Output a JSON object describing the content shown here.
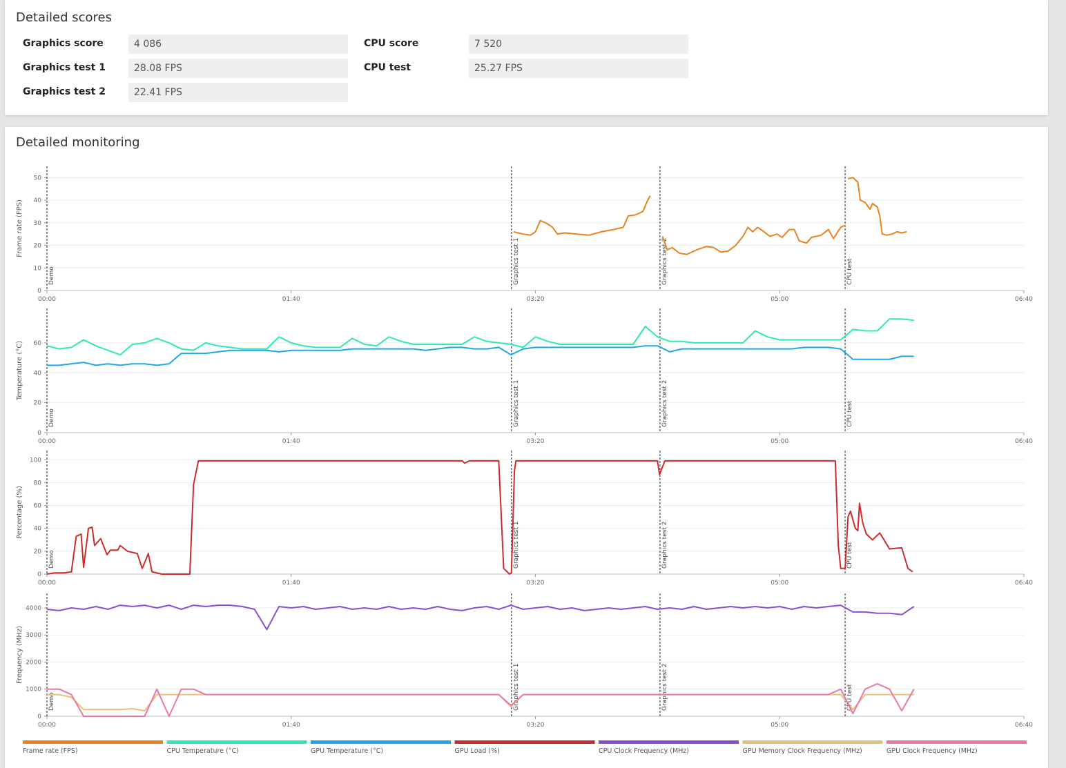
{
  "scores": {
    "title": "Detailed scores",
    "left": [
      {
        "label": "Graphics score",
        "value": "4 086"
      },
      {
        "label": "Graphics test 1",
        "value": "28.08 FPS"
      },
      {
        "label": "Graphics test 2",
        "value": "22.41 FPS"
      }
    ],
    "right": [
      {
        "label": "CPU score",
        "value": "7 520"
      },
      {
        "label": "CPU test",
        "value": "25.27 FPS"
      }
    ]
  },
  "monitoring": {
    "title": "Detailed monitoring"
  },
  "chart_data": [
    {
      "type": "line",
      "y_label": "Frame rate (FPS)",
      "x": [
        191,
        195,
        198,
        200,
        202,
        205,
        207,
        209,
        212,
        217,
        222,
        227,
        232,
        236,
        238,
        241,
        244,
        246,
        247,
        249,
        252,
        254,
        256,
        259,
        262,
        266,
        270,
        273,
        276,
        279,
        282,
        285,
        287,
        289,
        291,
        293,
        296,
        299,
        301,
        304,
        306,
        308,
        311,
        313,
        317,
        320,
        322,
        325,
        327,
        327.5,
        328,
        330,
        332,
        333,
        335,
        337,
        338,
        340,
        341,
        342,
        344,
        346,
        348,
        350,
        352
      ],
      "series": [
        {
          "name": "Frame rate (FPS)",
          "color": "#e8821f",
          "values": [
            26,
            25,
            24.5,
            26,
            31,
            29.5,
            28,
            25,
            25.5,
            25,
            24.5,
            26,
            27,
            28,
            33,
            33.5,
            35,
            40,
            42,
            null,
            24,
            18,
            19,
            16.5,
            16,
            18,
            19.5,
            19,
            17,
            17.5,
            20,
            24,
            28,
            26,
            28,
            26.5,
            24,
            25,
            23.5,
            27,
            27,
            22,
            21,
            23.5,
            24.5,
            27,
            23,
            28,
            29,
            null,
            49.5,
            50,
            48,
            40,
            39,
            36,
            38.5,
            37,
            33,
            25,
            24.5,
            25,
            26,
            25.5,
            26
          ]
        }
      ],
      "xlim": [
        0,
        400
      ],
      "xticks": [
        {
          "value": 0,
          "label": "00:00"
        },
        {
          "value": 100,
          "label": "01:40"
        },
        {
          "value": 200,
          "label": "03:20"
        },
        {
          "value": 300,
          "label": "05:00"
        },
        {
          "value": 400,
          "label": "06:40"
        }
      ],
      "ylim": [
        0,
        55
      ],
      "yticks": [
        0,
        10,
        20,
        30,
        40,
        50
      ],
      "grid": true,
      "markers": [
        {
          "x": 0,
          "label": "Demo"
        },
        {
          "x": 190.2,
          "label": "Graphics test 1"
        },
        {
          "x": 251,
          "label": "Graphics test 2"
        },
        {
          "x": 326.8,
          "label": "CPU test"
        }
      ]
    },
    {
      "type": "line",
      "y_label": "Temperature (°C)",
      "x": [
        0,
        5,
        10,
        15,
        20,
        25,
        30,
        35,
        40,
        45,
        50,
        55,
        60,
        65,
        70,
        75,
        80,
        85,
        90,
        95,
        100,
        105,
        110,
        115,
        120,
        125,
        130,
        135,
        140,
        145,
        150,
        155,
        160,
        165,
        170,
        175,
        180,
        185,
        190,
        195,
        200,
        205,
        210,
        215,
        220,
        225,
        230,
        235,
        240,
        245,
        250,
        255,
        260,
        265,
        270,
        275,
        280,
        285,
        290,
        295,
        300,
        305,
        310,
        315,
        320,
        325,
        330,
        335,
        340,
        345,
        350,
        355
      ],
      "series": [
        {
          "name": "CPU Temperature (°C)",
          "color": "#2ee8b6",
          "values": [
            58,
            56,
            57,
            62,
            58,
            55,
            52,
            59,
            60,
            63,
            60,
            56,
            55,
            60,
            58,
            57,
            56,
            56,
            56,
            64,
            60,
            58,
            57,
            57,
            57,
            63,
            59,
            58,
            64,
            61,
            59,
            59,
            59,
            59,
            59,
            64,
            61,
            60,
            59,
            57,
            64,
            61,
            59,
            59,
            59,
            59,
            59,
            59,
            59,
            71,
            64,
            61,
            61,
            60,
            60,
            60,
            60,
            60,
            68,
            64,
            62,
            62,
            62,
            62,
            62,
            62,
            69,
            68,
            68,
            76,
            76,
            75
          ]
        },
        {
          "name": "GPU Temperature (°C)",
          "color": "#1ea7e8",
          "values": [
            45,
            45,
            46,
            47,
            45,
            46,
            45,
            46,
            46,
            45,
            46,
            53,
            53,
            53,
            54,
            55,
            55,
            55,
            55,
            54,
            55,
            55,
            55,
            55,
            55,
            56,
            56,
            56,
            56,
            56,
            56,
            55,
            56,
            57,
            57,
            56,
            56,
            57,
            52,
            56,
            57,
            57,
            57,
            57,
            57,
            57,
            57,
            57,
            57,
            58,
            58,
            54,
            56,
            56,
            56,
            56,
            56,
            56,
            56,
            56,
            56,
            56,
            57,
            57,
            57,
            56,
            49,
            49,
            49,
            49,
            51,
            51
          ]
        }
      ],
      "xlim": [
        0,
        400
      ],
      "xticks": [
        {
          "value": 0,
          "label": "00:00"
        },
        {
          "value": 100,
          "label": "01:40"
        },
        {
          "value": 200,
          "label": "03:20"
        },
        {
          "value": 300,
          "label": "05:00"
        },
        {
          "value": 400,
          "label": "06:40"
        }
      ],
      "ylim": [
        0,
        83
      ],
      "yticks": [
        0,
        20,
        40,
        60
      ],
      "grid": true,
      "markers": [
        {
          "x": 0,
          "label": "Demo"
        },
        {
          "x": 190.2,
          "label": "Graphics test 1"
        },
        {
          "x": 251,
          "label": "Graphics test 2"
        },
        {
          "x": 326.8,
          "label": "CPU test"
        }
      ]
    },
    {
      "type": "line",
      "y_label": "Percentage (%)",
      "x": [
        0,
        3,
        7,
        10,
        12,
        14,
        15,
        17,
        18.5,
        19.5,
        22,
        24.6,
        26,
        29,
        30,
        33,
        37,
        39,
        41.5,
        43,
        47,
        58.5,
        60,
        62,
        170,
        171,
        173,
        185,
        187,
        189.4,
        190.2,
        191.4,
        192,
        250,
        250.8,
        253,
        322.8,
        324,
        325,
        326.8,
        328,
        329,
        331,
        332,
        332.7,
        334,
        335.5,
        338,
        341,
        345,
        350,
        352.5,
        354.5
      ],
      "series": [
        {
          "name": "GPU Load (%)",
          "color": "#cc2b2b",
          "values": [
            0,
            1,
            1,
            2,
            33,
            35,
            6,
            40,
            41,
            25,
            31,
            17,
            21,
            21,
            25,
            20,
            18,
            5,
            18,
            2,
            0,
            0,
            78,
            99,
            99,
            97,
            99,
            99,
            5,
            0,
            1,
            90,
            99,
            99,
            87,
            99,
            99,
            25,
            5,
            5,
            50,
            55,
            40,
            38,
            62,
            45,
            35,
            30,
            36,
            22,
            23,
            5,
            2
          ]
        }
      ],
      "xlim": [
        0,
        400
      ],
      "xticks": [
        {
          "value": 0,
          "label": "00:00"
        },
        {
          "value": 100,
          "label": "01:40"
        },
        {
          "value": 200,
          "label": "03:20"
        },
        {
          "value": 300,
          "label": "05:00"
        },
        {
          "value": 400,
          "label": "06:40"
        }
      ],
      "ylim": [
        0,
        108
      ],
      "yticks": [
        0,
        20,
        40,
        60,
        80,
        100
      ],
      "grid": true,
      "markers": [
        {
          "x": 0,
          "label": "Demo"
        },
        {
          "x": 190.2,
          "label": "Graphics test 1"
        },
        {
          "x": 251,
          "label": "Graphics test 2"
        },
        {
          "x": 326.8,
          "label": "CPU test"
        }
      ]
    },
    {
      "type": "line",
      "y_label": "Frequency (MHz)",
      "x": [
        0,
        5,
        10,
        15,
        20,
        25,
        30,
        35,
        40,
        45,
        50,
        55,
        60,
        65,
        70,
        75,
        80,
        85,
        90,
        95,
        100,
        105,
        110,
        115,
        120,
        125,
        130,
        135,
        140,
        145,
        150,
        155,
        160,
        165,
        170,
        175,
        180,
        185,
        190,
        195,
        200,
        205,
        210,
        215,
        220,
        225,
        230,
        235,
        240,
        245,
        250,
        255,
        260,
        265,
        270,
        275,
        280,
        285,
        290,
        295,
        300,
        305,
        310,
        315,
        320,
        325,
        330,
        335,
        340,
        345,
        350,
        355
      ],
      "series": [
        {
          "name": "CPU Clock Frequency (MHz)",
          "color": "#8a4fcf",
          "values": [
            3950,
            3900,
            4000,
            3950,
            4050,
            3950,
            4100,
            4050,
            4100,
            4000,
            4100,
            3950,
            4100,
            4050,
            4100,
            4100,
            4050,
            3950,
            3200,
            4050,
            4000,
            4050,
            3950,
            4000,
            4050,
            3950,
            4000,
            3950,
            4050,
            3950,
            4000,
            3950,
            4050,
            3950,
            3900,
            4000,
            4050,
            3950,
            4100,
            3950,
            4000,
            4050,
            3950,
            4000,
            3900,
            3950,
            4000,
            3950,
            4000,
            4050,
            3950,
            4000,
            3950,
            4050,
            3950,
            4000,
            4050,
            4000,
            4050,
            4000,
            4050,
            3950,
            4050,
            4000,
            4050,
            4100,
            3850,
            3850,
            3800,
            3800,
            3750,
            4050
          ]
        },
        {
          "name": "GPU Memory Clock Frequency (MHz)",
          "color": "#e6c07a",
          "values": [
            800,
            800,
            700,
            250,
            250,
            250,
            250,
            280,
            200,
            800,
            800,
            800,
            800,
            800,
            800,
            800,
            800,
            800,
            800,
            800,
            800,
            800,
            800,
            800,
            800,
            800,
            800,
            800,
            800,
            800,
            800,
            800,
            800,
            800,
            800,
            800,
            800,
            800,
            350,
            800,
            800,
            800,
            800,
            800,
            800,
            800,
            800,
            800,
            800,
            800,
            800,
            800,
            800,
            800,
            800,
            800,
            800,
            800,
            800,
            800,
            800,
            800,
            800,
            800,
            800,
            800,
            250,
            800,
            800,
            800,
            800,
            800
          ]
        },
        {
          "name": "GPU Clock Frequency (MHz)",
          "color": "#e879a6",
          "values": [
            1000,
            1000,
            800,
            0,
            0,
            0,
            0,
            0,
            0,
            1000,
            0,
            1000,
            1000,
            800,
            800,
            800,
            800,
            800,
            800,
            800,
            800,
            800,
            800,
            800,
            800,
            800,
            800,
            800,
            800,
            800,
            800,
            800,
            800,
            800,
            800,
            800,
            800,
            800,
            400,
            800,
            800,
            800,
            800,
            800,
            800,
            800,
            800,
            800,
            800,
            800,
            800,
            800,
            800,
            800,
            800,
            800,
            800,
            800,
            800,
            800,
            800,
            800,
            800,
            800,
            800,
            1000,
            100,
            1000,
            1200,
            1000,
            200,
            1000
          ]
        }
      ],
      "xlim": [
        0,
        400
      ],
      "xticks": [
        {
          "value": 0,
          "label": "00:00"
        },
        {
          "value": 100,
          "label": "01:40"
        },
        {
          "value": 200,
          "label": "03:20"
        },
        {
          "value": 300,
          "label": "05:00"
        },
        {
          "value": 400,
          "label": "06:40"
        }
      ],
      "ylim": [
        0,
        4535
      ],
      "yticks": [
        0,
        1000,
        2000,
        3000,
        4000
      ],
      "grid": true,
      "markers": [
        {
          "x": 0,
          "label": "Demo"
        },
        {
          "x": 190.2,
          "label": "Graphics test 1"
        },
        {
          "x": 251,
          "label": "Graphics test 2"
        },
        {
          "x": 326.8,
          "label": "CPU test"
        }
      ]
    }
  ]
}
